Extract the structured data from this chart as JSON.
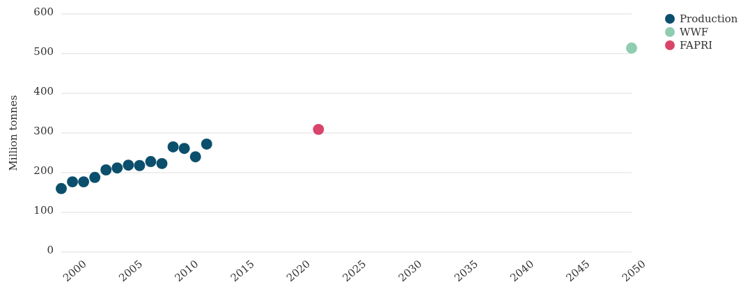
{
  "chart_data": {
    "type": "scatter",
    "ylabel": "Million tonnes",
    "xlim": [
      1999,
      2050
    ],
    "xticks": [
      2000,
      2005,
      2010,
      2015,
      2020,
      2025,
      2030,
      2035,
      2040,
      2045,
      2050
    ],
    "ylim": [
      0,
      600
    ],
    "yticks": [
      0,
      100,
      200,
      300,
      400,
      500,
      600
    ],
    "grid": "y",
    "legend": "top right",
    "marker": "circle",
    "series": [
      {
        "name": "Production",
        "color": "#0b4f6c",
        "x": [
          1999,
          2000,
          2001,
          2002,
          2003,
          2004,
          2005,
          2006,
          2007,
          2008,
          2009,
          2010,
          2011,
          2012
        ],
        "values": [
          160,
          177,
          177,
          188,
          207,
          212,
          219,
          218,
          228,
          223,
          265,
          261,
          240,
          272
        ]
      },
      {
        "name": "WWF",
        "color": "#8ecdb0",
        "x": [
          2050
        ],
        "values": [
          514
        ]
      },
      {
        "name": "FAPRI",
        "color": "#d9446a",
        "x": [
          2022
        ],
        "values": [
          309
        ]
      }
    ]
  }
}
